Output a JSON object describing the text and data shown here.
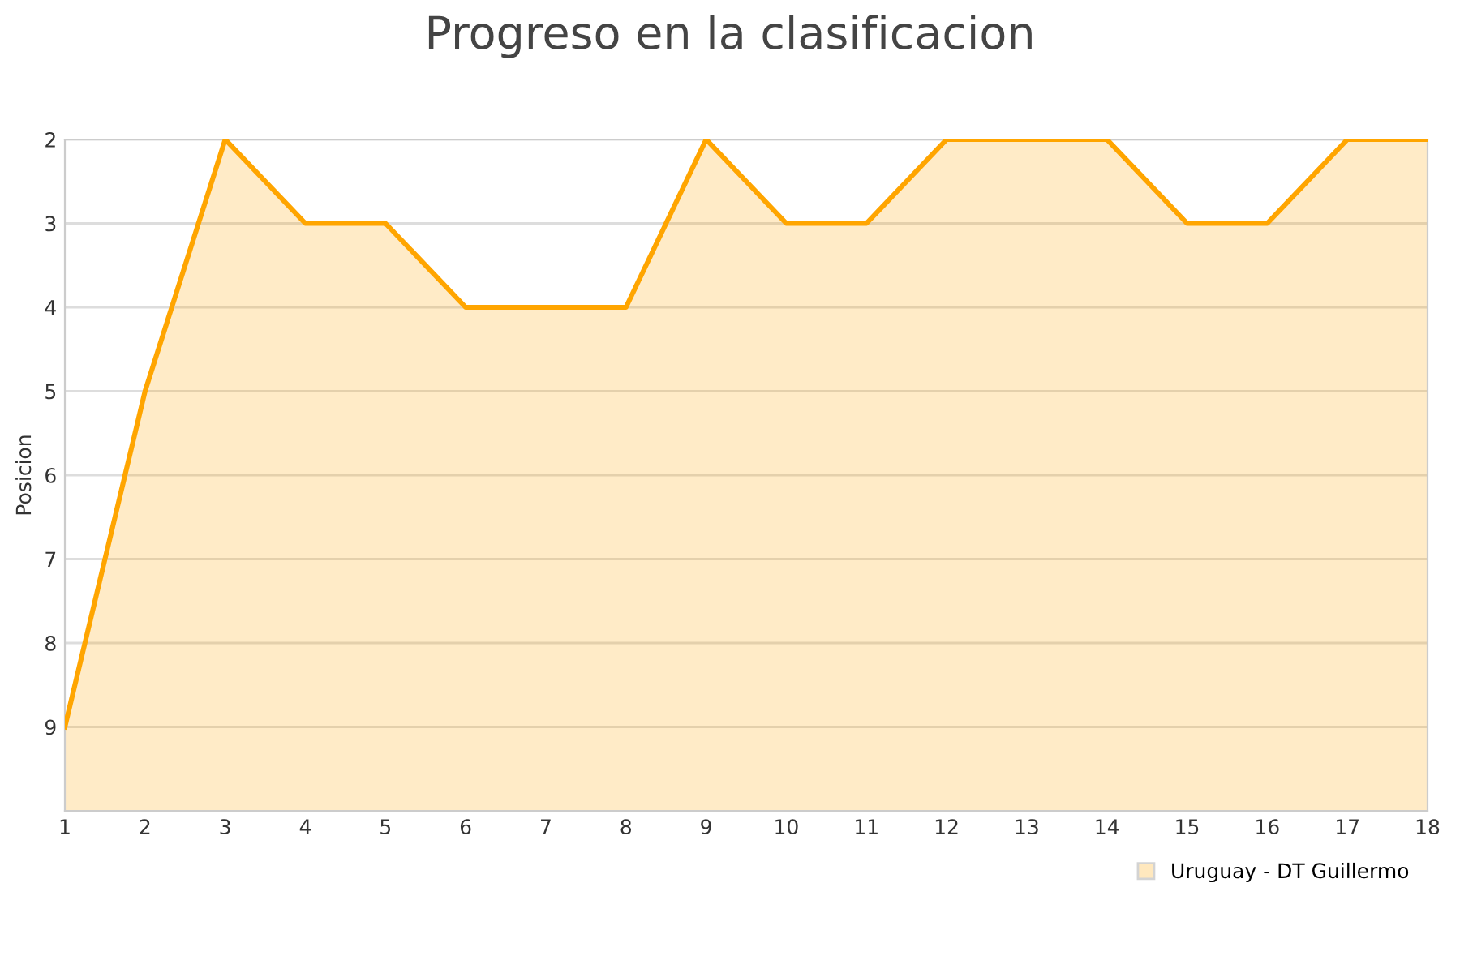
{
  "chart_data": {
    "type": "line",
    "title": "Progreso en la clasificacion",
    "ylabel": "Posicion",
    "x": [
      1,
      2,
      3,
      4,
      5,
      6,
      7,
      8,
      9,
      10,
      11,
      12,
      13,
      14,
      15,
      16,
      17,
      18
    ],
    "series": [
      {
        "name": "Uruguay - DT Guillermo",
        "color": "#ffa500",
        "values": [
          9,
          5,
          2,
          3,
          3,
          4,
          4,
          4,
          2,
          3,
          3,
          2,
          2,
          2,
          3,
          3,
          2,
          2
        ]
      }
    ],
    "xlim": [
      1,
      18
    ],
    "xticks": [
      1,
      2,
      3,
      4,
      5,
      6,
      7,
      8,
      9,
      10,
      11,
      12,
      13,
      14,
      15,
      16,
      17,
      18
    ],
    "ylim": [
      10,
      2
    ],
    "yticks": [
      2,
      3,
      4,
      5,
      6,
      7,
      8,
      9
    ],
    "grid": "y",
    "legend": "bottom right",
    "marker": "none",
    "line_style": "solid"
  }
}
